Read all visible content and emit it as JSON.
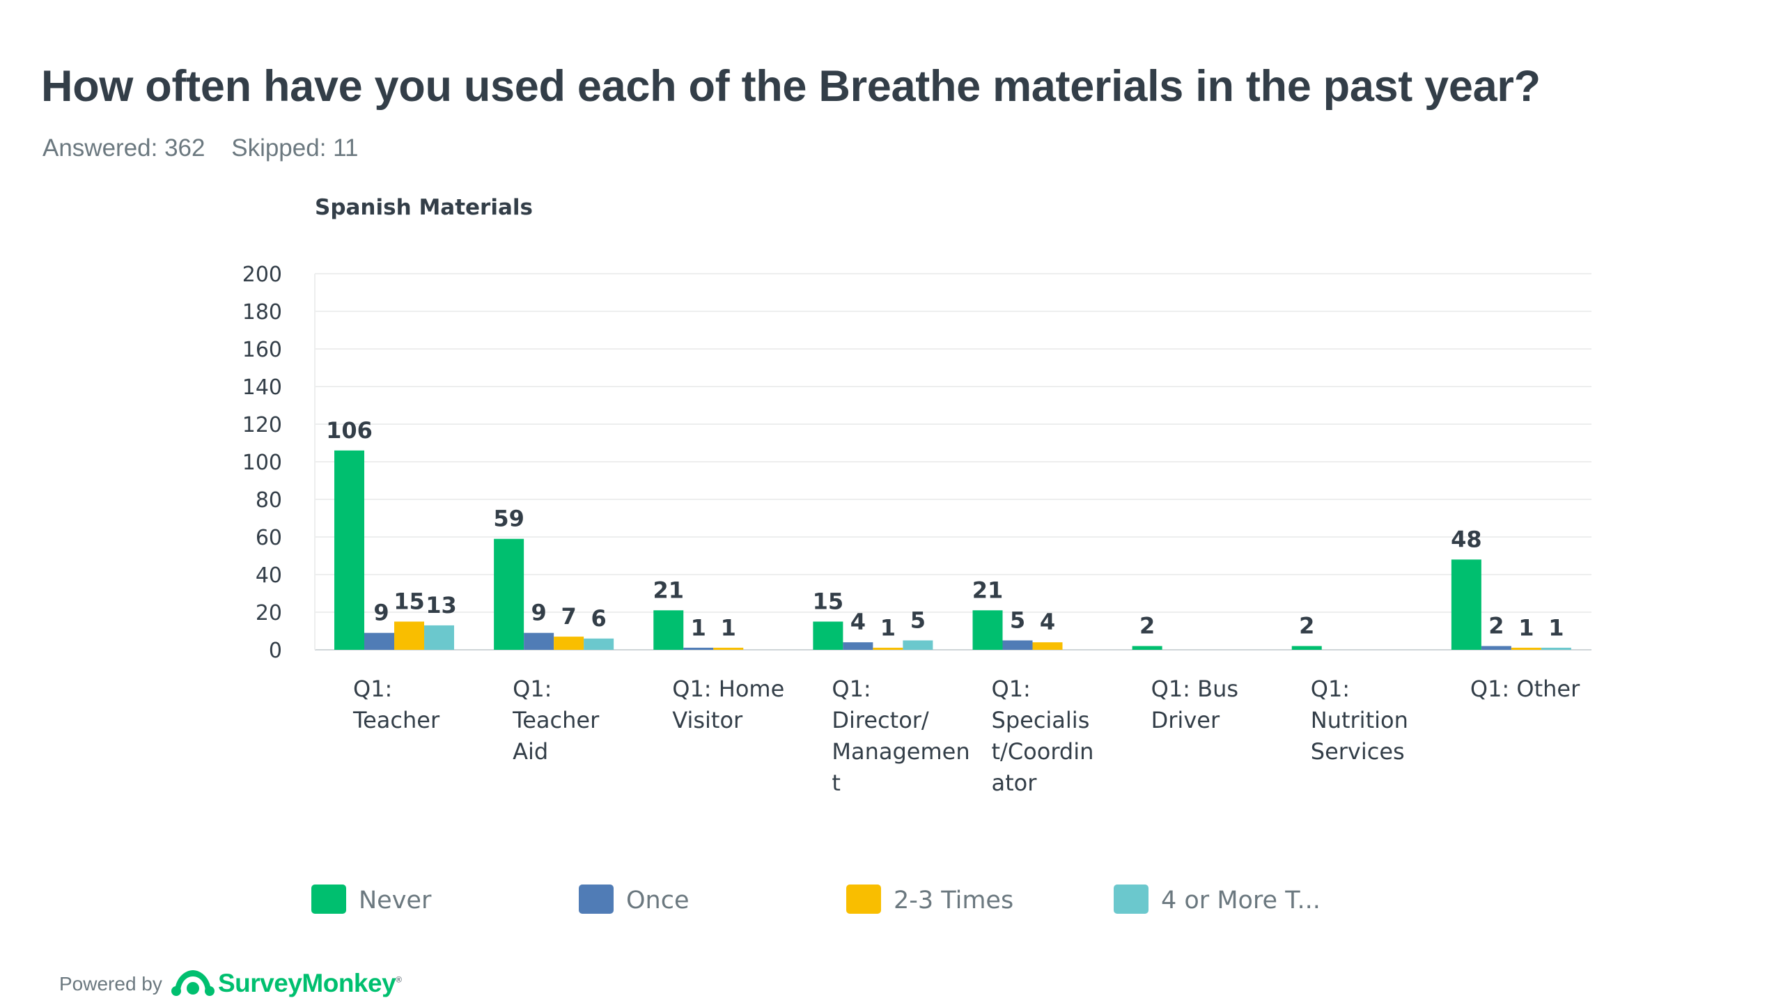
{
  "question": {
    "title": "How often have you used each of the Breathe materials in the past year?",
    "answered": "Answered: 362",
    "skipped": "Skipped: 11"
  },
  "footer": {
    "powered_by": "Powered by",
    "brand": "SurveyMonkey"
  },
  "chart_data": {
    "type": "bar",
    "title": "Spanish Materials",
    "xlabel": "",
    "ylabel": "",
    "ylim": [
      0,
      200
    ],
    "yticks": [
      0,
      20,
      40,
      60,
      80,
      100,
      120,
      140,
      160,
      180,
      200
    ],
    "grid": true,
    "legend_position": "bottom",
    "categories": [
      [
        "Q1:",
        "Teacher"
      ],
      [
        "Q1:",
        "Teacher",
        "Aid"
      ],
      [
        "Q1: Home",
        "Visitor"
      ],
      [
        "Q1:",
        "Director/",
        "Managemen",
        "t"
      ],
      [
        "Q1:",
        "Specialis",
        "t/Coordin",
        "ator"
      ],
      [
        "Q1: Bus",
        "Driver"
      ],
      [
        "Q1:",
        "Nutrition",
        "Services"
      ],
      [
        "Q1: Other"
      ]
    ],
    "series": [
      {
        "name": "Never",
        "color": "#00bf6f",
        "values": [
          106,
          59,
          21,
          15,
          21,
          2,
          2,
          48
        ]
      },
      {
        "name": "Once",
        "color": "#507cb6",
        "values": [
          9,
          9,
          1,
          4,
          5,
          null,
          null,
          2
        ]
      },
      {
        "name": "2-3 Times",
        "color": "#f9be00",
        "values": [
          15,
          7,
          1,
          1,
          4,
          null,
          null,
          1
        ]
      },
      {
        "name": "4 or More T...",
        "color": "#6bc8cd",
        "values": [
          13,
          6,
          null,
          5,
          null,
          null,
          null,
          1
        ]
      }
    ]
  }
}
